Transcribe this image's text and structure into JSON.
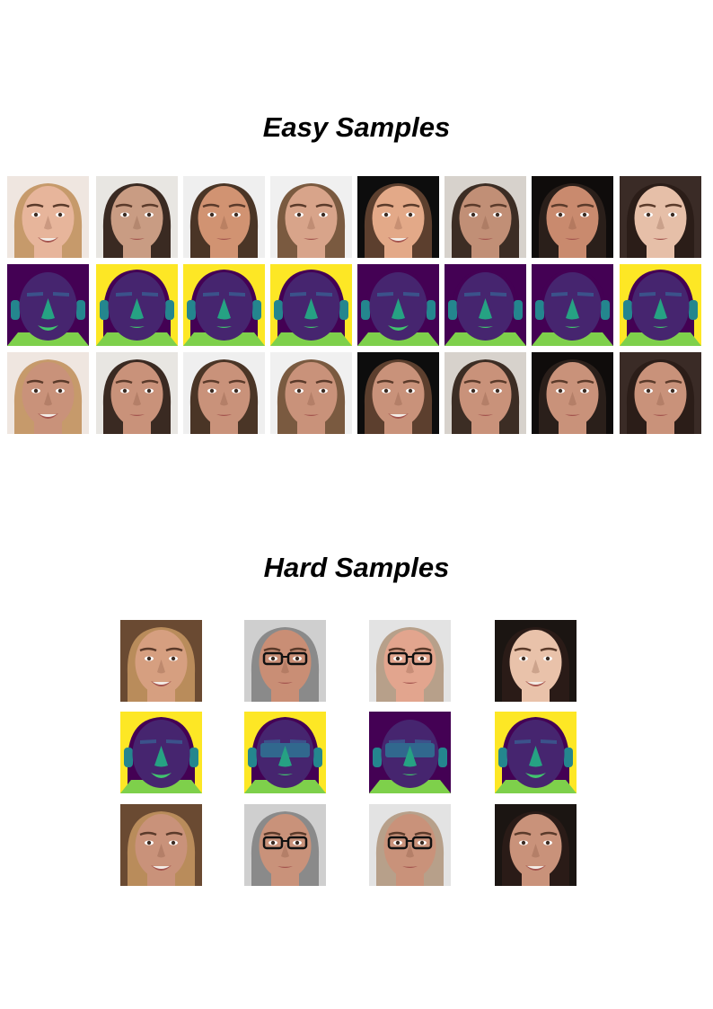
{
  "sections": [
    {
      "title": "Easy Samples",
      "samples": [
        {
          "skin": "#e7b59b",
          "hair": "#c69a6b",
          "bg": "#efe6e0",
          "seg_bg": "purple",
          "expression": "smile"
        },
        {
          "skin": "#c99c83",
          "hair": "#3a2a22",
          "bg": "#e8e6e2",
          "seg_bg": "yellow",
          "expression": "neutral"
        },
        {
          "skin": "#d19372",
          "hair": "#4a3526",
          "bg": "#efefef",
          "seg_bg": "yellow",
          "expression": "neutral"
        },
        {
          "skin": "#d8a48a",
          "hair": "#7a5a40",
          "bg": "#f0f0f0",
          "seg_bg": "yellow",
          "expression": "neutral"
        },
        {
          "skin": "#e3a988",
          "hair": "#5c3f2e",
          "bg": "#0d0d0d",
          "seg_bg": "purple",
          "expression": "smile"
        },
        {
          "skin": "#c18f76",
          "hair": "#3c2d24",
          "bg": "#d7d2cc",
          "seg_bg": "purple",
          "expression": "neutral"
        },
        {
          "skin": "#c98a6e",
          "hair": "#2a1f1a",
          "bg": "#0f0c0b",
          "seg_bg": "purple",
          "expression": "neutral"
        },
        {
          "skin": "#e6bfa8",
          "hair": "#2b1d18",
          "bg": "#3a2b26",
          "seg_bg": "yellow",
          "expression": "neutral"
        }
      ]
    },
    {
      "title": "Hard Samples",
      "samples": [
        {
          "skin": "#d69f80",
          "hair": "#b98c5b",
          "bg": "#6a4a32",
          "seg_bg": "yellow",
          "expression": "smile",
          "glasses": false
        },
        {
          "skin": "#c98e75",
          "hair": "#8a8a8a",
          "bg": "#cfcfcf",
          "seg_bg": "yellow",
          "expression": "neutral",
          "glasses": true
        },
        {
          "skin": "#e2a58e",
          "hair": "#b7a08a",
          "bg": "#e3e3e3",
          "seg_bg": "purple",
          "expression": "neutral",
          "glasses": true
        },
        {
          "skin": "#e9c2aa",
          "hair": "#2a1b17",
          "bg": "#1b1512",
          "seg_bg": "yellow",
          "expression": "smile",
          "glasses": false
        }
      ]
    }
  ],
  "palette": {
    "seg_purple": "#440154",
    "seg_yellow": "#fde725",
    "seg_face": "#46256f",
    "seg_nose": "#26a283",
    "seg_mouth": "#41c46f",
    "seg_neck": "#7ed04b",
    "seg_brow": "#3b528b",
    "seg_ear": "#24868e",
    "seg_glasses": "#31688e",
    "swap_tint": "#c9927a"
  }
}
